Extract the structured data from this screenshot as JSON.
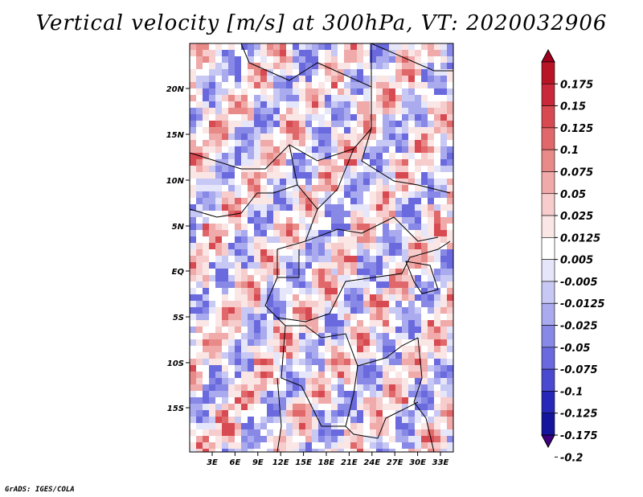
{
  "title": "Vertical velocity [m/s] at 300hPa, VT: 2020032906",
  "footer": "GrADS: IGES/COLA",
  "map": {
    "lat_labels": [
      "20N",
      "15N",
      "10N",
      "5N",
      "EQ",
      "5S",
      "10S",
      "15S"
    ],
    "lon_labels": [
      "3E",
      "6E",
      "9E",
      "12E",
      "15E",
      "18E",
      "21E",
      "24E",
      "27E",
      "30E",
      "33E"
    ],
    "field_colors": {
      "negative": "#5a5ae0",
      "positive": "#e05a5a",
      "neutral": "#ffffff"
    }
  },
  "colorbar": {
    "labels": [
      "0.175",
      "0.15",
      "0.125",
      "0.1",
      "0.075",
      "0.05",
      "0.025",
      "0.0125",
      "0.005",
      "-0.005",
      "-0.0125",
      "-0.025",
      "-0.05",
      "-0.075",
      "-0.1",
      "-0.125",
      "-0.175",
      "-0.2"
    ],
    "colors": [
      "#a0001e",
      "#b81426",
      "#c8283a",
      "#d84a52",
      "#e0686a",
      "#e88a88",
      "#f0aaaa",
      "#f6cccc",
      "#fbe6e6",
      "#ffffff",
      "#e6e6fb",
      "#c8c8f4",
      "#aaaaee",
      "#8888e6",
      "#6a6ade",
      "#4a4ad0",
      "#2828b8",
      "#14149c",
      "#3c0080"
    ]
  }
}
